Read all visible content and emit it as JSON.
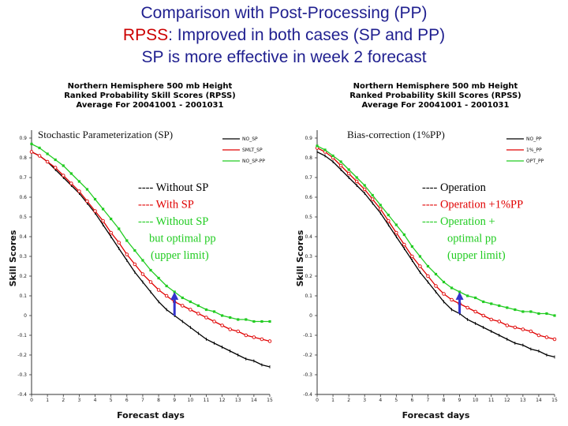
{
  "slide": {
    "line1": "Comparison with Post-Processing (PP)",
    "line2_red": "RPSS",
    "line2_rest": ": Improved in both cases (SP and PP)",
    "line3": "SP is more effective in week 2 forecast"
  },
  "colors": {
    "black": "#000000",
    "red": "#e00000",
    "green": "#22cc22",
    "arrow": "#3333cc",
    "title_blue": "#1f1f8f"
  },
  "chart_data": [
    {
      "type": "line",
      "title": "Northern Hemisphere 500 mb Height\nRanked Probability Skill Scores (RPSS)\nAverage For 20041001 - 2001031",
      "xlabel": "Forecast days",
      "ylabel": "Skill Scores",
      "ylim": [
        -0.4,
        0.9
      ],
      "xlim": [
        0,
        15
      ],
      "grid": false,
      "inset_label": "Stochastic Parameterization (SP)",
      "legend": {
        "placement": "top-right",
        "entries": [
          "NO_SP",
          "SMLT_SP",
          "NO_SP-PP"
        ]
      },
      "annotation": [
        "---- Without SP",
        "---- With SP",
        "---- Without SP",
        "but optimal pp",
        "(upper limit)"
      ],
      "arrow_at_day": 9,
      "x": [
        0,
        0.5,
        1,
        1.5,
        2,
        2.5,
        3,
        3.5,
        4,
        4.5,
        5,
        5.5,
        6,
        6.5,
        7,
        7.5,
        8,
        8.5,
        9,
        9.5,
        10,
        10.5,
        11,
        11.5,
        12,
        12.5,
        13,
        13.5,
        14,
        14.5,
        15
      ],
      "series": [
        {
          "name": "NO_SP",
          "values": [
            0.83,
            0.81,
            0.78,
            0.74,
            0.7,
            0.66,
            0.62,
            0.57,
            0.52,
            0.46,
            0.4,
            0.34,
            0.28,
            0.22,
            0.17,
            0.12,
            0.07,
            0.03,
            0.0,
            -0.03,
            -0.06,
            -0.09,
            -0.12,
            -0.14,
            -0.16,
            -0.18,
            -0.2,
            -0.22,
            -0.23,
            -0.25,
            -0.26
          ]
        },
        {
          "name": "SMLT_SP",
          "values": [
            0.83,
            0.81,
            0.78,
            0.75,
            0.71,
            0.67,
            0.63,
            0.58,
            0.53,
            0.48,
            0.42,
            0.37,
            0.31,
            0.26,
            0.21,
            0.17,
            0.13,
            0.1,
            0.07,
            0.05,
            0.03,
            0.01,
            -0.01,
            -0.03,
            -0.05,
            -0.07,
            -0.08,
            -0.1,
            -0.11,
            -0.12,
            -0.13
          ]
        },
        {
          "name": "NO_SP-PP",
          "values": [
            0.87,
            0.85,
            0.82,
            0.79,
            0.76,
            0.72,
            0.68,
            0.64,
            0.59,
            0.54,
            0.49,
            0.44,
            0.38,
            0.33,
            0.28,
            0.23,
            0.19,
            0.15,
            0.12,
            0.09,
            0.07,
            0.05,
            0.03,
            0.02,
            0.0,
            -0.01,
            -0.02,
            -0.02,
            -0.03,
            -0.03,
            -0.03
          ]
        }
      ]
    },
    {
      "type": "line",
      "title": "Northern Hemisphere 500 mb Height\nRanked Probability Skill Scores (RPSS)\nAverage For 20041001 - 2001031",
      "xlabel": "Forecast days",
      "ylabel": "Skill Scores",
      "ylim": [
        -0.4,
        0.9
      ],
      "xlim": [
        0,
        15
      ],
      "grid": false,
      "inset_label": "Bias-correction (1%PP)",
      "legend": {
        "placement": "top-right",
        "entries": [
          "NO_PP",
          "1%_PP",
          "OPT_PP"
        ]
      },
      "annotation": [
        "---- Operation",
        "---- Operation +1%PP",
        "---- Operation +",
        "optimal pp",
        "(upper limit)"
      ],
      "arrow_at_day": 9,
      "x": [
        0,
        0.5,
        1,
        1.5,
        2,
        2.5,
        3,
        3.5,
        4,
        4.5,
        5,
        5.5,
        6,
        6.5,
        7,
        7.5,
        8,
        8.5,
        9,
        9.5,
        10,
        10.5,
        11,
        11.5,
        12,
        12.5,
        13,
        13.5,
        14,
        14.5,
        15
      ],
      "series": [
        {
          "name": "NO_PP",
          "values": [
            0.83,
            0.81,
            0.78,
            0.74,
            0.7,
            0.66,
            0.62,
            0.57,
            0.52,
            0.46,
            0.4,
            0.34,
            0.28,
            0.22,
            0.17,
            0.12,
            0.07,
            0.03,
            0.01,
            -0.02,
            -0.04,
            -0.06,
            -0.08,
            -0.1,
            -0.12,
            -0.14,
            -0.15,
            -0.17,
            -0.18,
            -0.2,
            -0.21
          ]
        },
        {
          "name": "1%_PP",
          "values": [
            0.85,
            0.83,
            0.8,
            0.76,
            0.72,
            0.68,
            0.64,
            0.59,
            0.54,
            0.48,
            0.42,
            0.36,
            0.3,
            0.25,
            0.2,
            0.15,
            0.11,
            0.08,
            0.06,
            0.04,
            0.02,
            0.0,
            -0.02,
            -0.03,
            -0.05,
            -0.06,
            -0.07,
            -0.08,
            -0.1,
            -0.11,
            -0.12
          ]
        },
        {
          "name": "OPT_PP",
          "values": [
            0.86,
            0.84,
            0.81,
            0.78,
            0.74,
            0.7,
            0.66,
            0.61,
            0.56,
            0.51,
            0.46,
            0.41,
            0.35,
            0.3,
            0.25,
            0.21,
            0.17,
            0.14,
            0.12,
            0.1,
            0.09,
            0.07,
            0.06,
            0.05,
            0.04,
            0.03,
            0.02,
            0.02,
            0.01,
            0.01,
            0.0
          ]
        }
      ]
    }
  ]
}
